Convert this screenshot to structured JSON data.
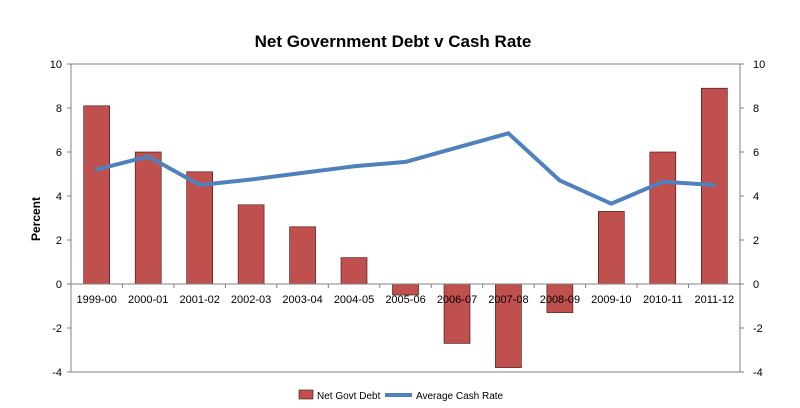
{
  "chart_data": {
    "type": "bar",
    "title": "Net Government Debt v Cash Rate",
    "ylabel": "Percent",
    "xlabel": "",
    "ylim": [
      -4,
      10
    ],
    "yticks": [
      -4,
      -2,
      0,
      2,
      4,
      6,
      8,
      10
    ],
    "secondary_yticks": [
      -4,
      -2,
      0,
      2,
      4,
      6,
      8,
      10
    ],
    "grid": false,
    "legend_position": "bottom",
    "categories": [
      "1999-00",
      "2000-01",
      "2001-02",
      "2002-03",
      "2003-04",
      "2004-05",
      "2005-06",
      "2006-07",
      "2007-08",
      "2008-09",
      "2009-10",
      "2010-11",
      "2011-12"
    ],
    "series": [
      {
        "name": "Net Govt Debt",
        "type": "bar",
        "color": "#c0504d",
        "values": [
          8.1,
          6.0,
          5.1,
          3.6,
          2.6,
          1.2,
          -0.5,
          -2.7,
          -3.8,
          -1.3,
          3.3,
          6.0,
          8.9
        ]
      },
      {
        "name": "Average Cash Rate",
        "type": "line",
        "color": "#4f81bd",
        "values": [
          5.2,
          5.8,
          4.5,
          4.75,
          5.05,
          5.35,
          5.55,
          6.2,
          6.85,
          4.7,
          3.65,
          4.65,
          4.5
        ]
      }
    ]
  }
}
